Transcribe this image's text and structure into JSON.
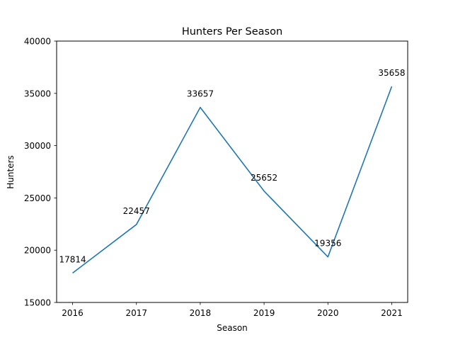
{
  "chart_data": {
    "type": "line",
    "title": "Hunters Per Season",
    "xlabel": "Season",
    "ylabel": "Hunters",
    "x": [
      2016,
      2017,
      2018,
      2019,
      2020,
      2021
    ],
    "x_tick_labels": [
      "2016",
      "2017",
      "2018",
      "2019",
      "2020",
      "2021"
    ],
    "y_ticks": [
      15000,
      20000,
      25000,
      30000,
      35000,
      40000
    ],
    "y_tick_labels": [
      "15000",
      "20000",
      "25000",
      "30000",
      "35000",
      "40000"
    ],
    "ylim": [
      15000,
      40000
    ],
    "grid": false,
    "series": [
      {
        "values": [
          17814,
          22457,
          33657,
          25652,
          19356,
          35658
        ],
        "labels": [
          "17814",
          "22457",
          "33657",
          "25652",
          "19356",
          "35658"
        ],
        "color": "#1f77b4"
      }
    ]
  }
}
